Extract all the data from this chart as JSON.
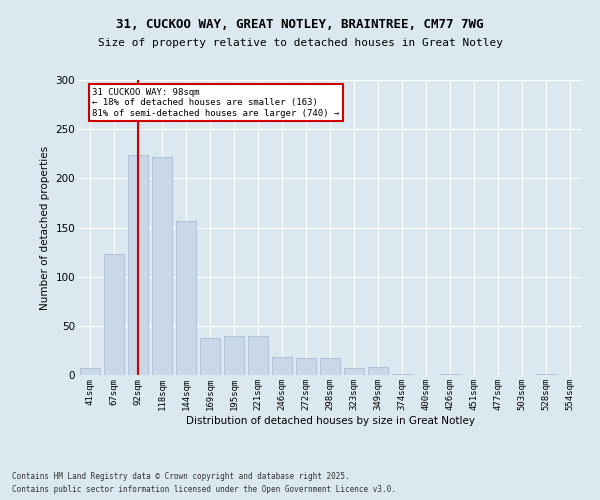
{
  "title1": "31, CUCKOO WAY, GREAT NOTLEY, BRAINTREE, CM77 7WG",
  "title2": "Size of property relative to detached houses in Great Notley",
  "xlabel": "Distribution of detached houses by size in Great Notley",
  "ylabel": "Number of detached properties",
  "categories": [
    "41sqm",
    "67sqm",
    "92sqm",
    "118sqm",
    "144sqm",
    "169sqm",
    "195sqm",
    "221sqm",
    "246sqm",
    "272sqm",
    "298sqm",
    "323sqm",
    "349sqm",
    "374sqm",
    "400sqm",
    "426sqm",
    "451sqm",
    "477sqm",
    "503sqm",
    "528sqm",
    "554sqm"
  ],
  "values": [
    7,
    123,
    224,
    222,
    157,
    38,
    40,
    40,
    18,
    17,
    17,
    7,
    8,
    1,
    0,
    1,
    0,
    0,
    0,
    1,
    0
  ],
  "bar_color": "#c8d8e8",
  "bar_edge_color": "#a0b8d0",
  "vline_x_index": 2,
  "vline_color": "#cc0000",
  "annotation_text": "31 CUCKOO WAY: 98sqm\n← 18% of detached houses are smaller (163)\n81% of semi-detached houses are larger (740) →",
  "annotation_box_color": "white",
  "annotation_box_edge": "#cc0000",
  "ylim": [
    0,
    300
  ],
  "yticks": [
    0,
    50,
    100,
    150,
    200,
    250,
    300
  ],
  "footer1": "Contains HM Land Registry data © Crown copyright and database right 2025.",
  "footer2": "Contains public sector information licensed under the Open Government Licence v3.0.",
  "bg_color": "#dce8f0",
  "plot_bg_color": "#dce8f0"
}
